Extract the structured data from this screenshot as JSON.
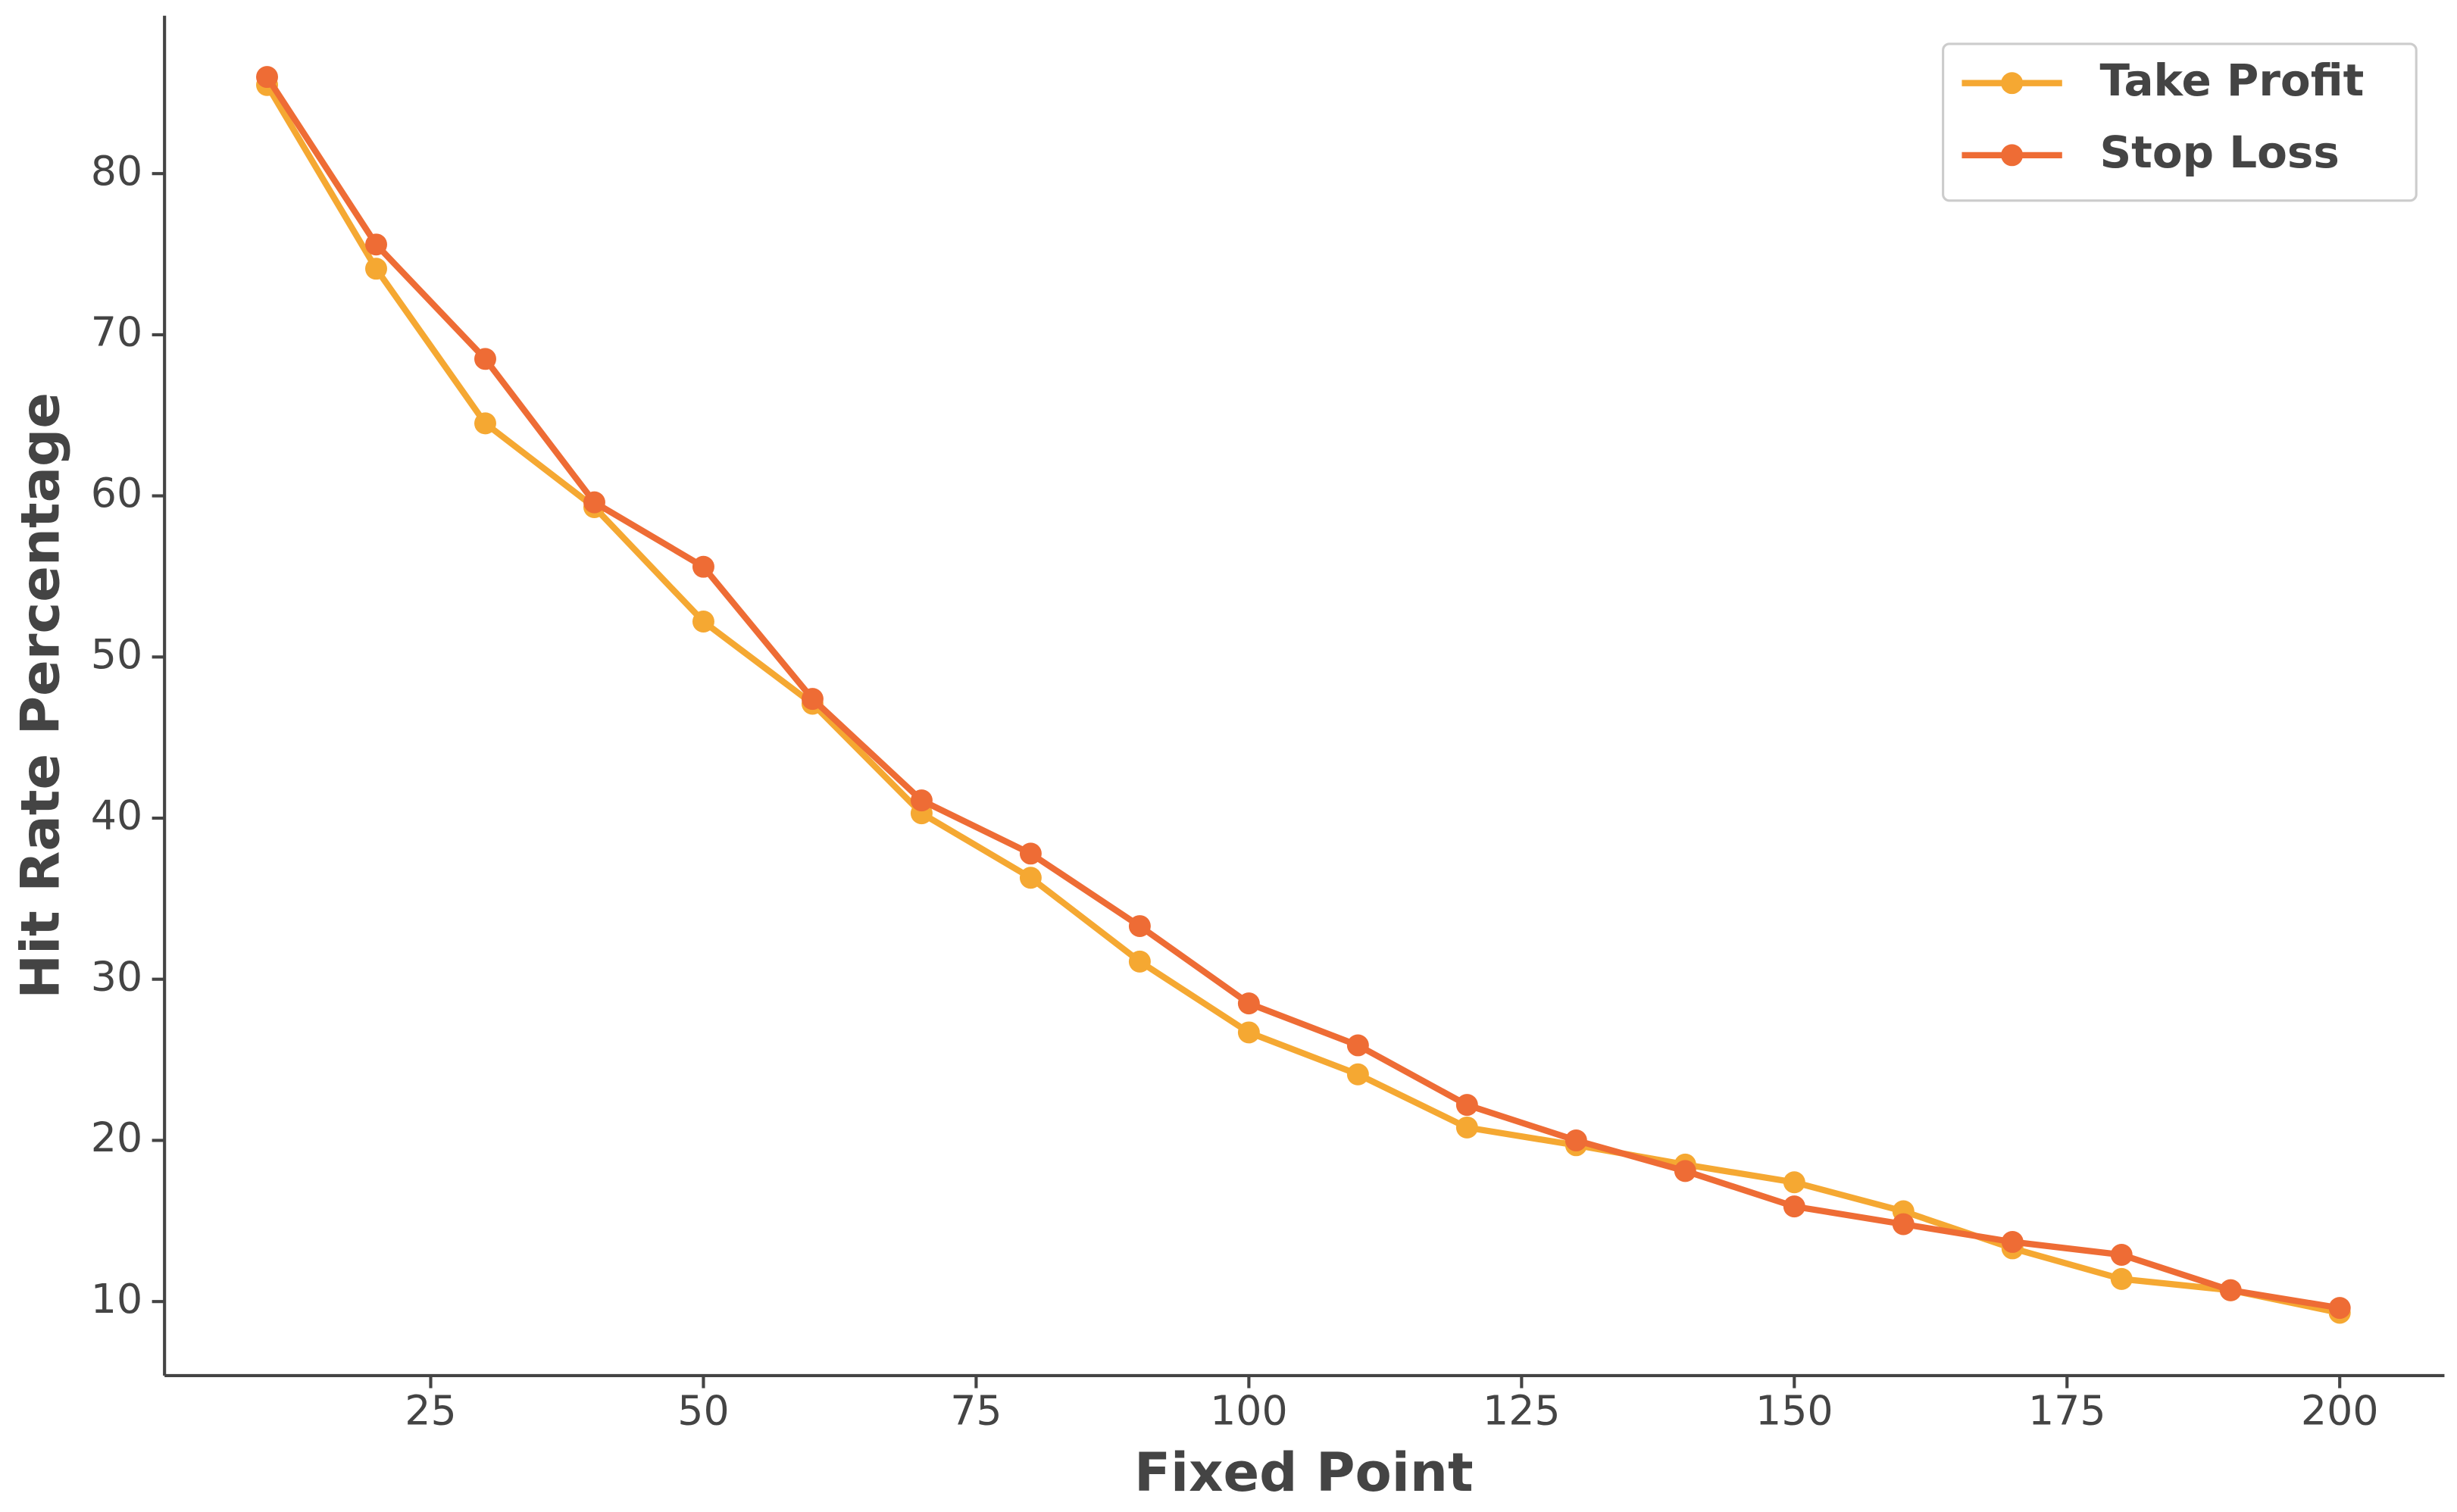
{
  "chart_data": {
    "type": "line",
    "x_label": "Fixed Point",
    "y_label": "Hit Rate Percentage",
    "x": [
      10,
      20,
      30,
      40,
      50,
      60,
      70,
      80,
      90,
      100,
      110,
      120,
      130,
      140,
      150,
      160,
      170,
      180,
      190,
      200
    ],
    "series": [
      {
        "name": "Take Profit",
        "color": "#f5a832",
        "values": [
          85.5,
          74.1,
          64.5,
          59.3,
          52.2,
          47.1,
          40.3,
          36.3,
          31.1,
          26.7,
          24.1,
          20.8,
          19.7,
          18.5,
          17.4,
          15.6,
          13.3,
          11.4,
          10.7,
          9.3
        ]
      },
      {
        "name": "Stop Loss",
        "color": "#ee6c35",
        "values": [
          86.0,
          75.6,
          68.5,
          59.6,
          55.6,
          47.4,
          41.1,
          37.8,
          33.3,
          28.5,
          25.9,
          22.2,
          20.0,
          18.1,
          15.9,
          14.8,
          13.7,
          12.9,
          10.7,
          9.6
        ]
      }
    ],
    "xlim": [
      0.6,
      209.6
    ],
    "xticks": [
      25,
      50,
      75,
      100,
      125,
      150,
      175,
      200
    ],
    "ylim": [
      5.4,
      89.8
    ],
    "yticks": [
      10,
      20,
      30,
      40,
      50,
      60,
      70,
      80
    ],
    "grid": false,
    "legend": "upper right"
  }
}
